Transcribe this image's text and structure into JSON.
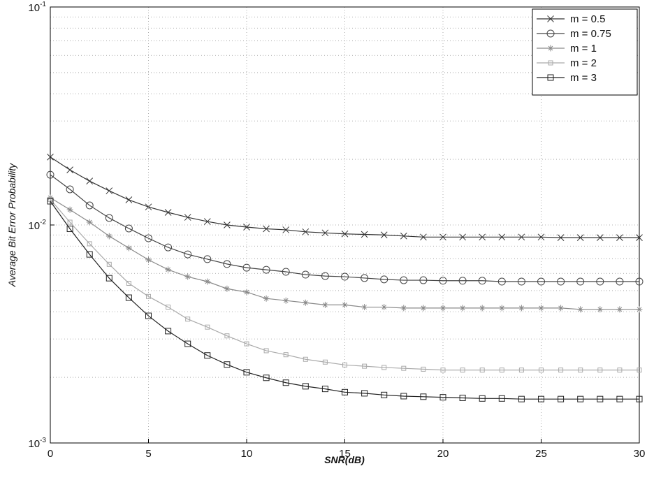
{
  "chart_data": {
    "type": "line",
    "x_label": "SNR(dB)",
    "y_label": "Average Bit Error Probability",
    "x": [
      0,
      1,
      2,
      3,
      4,
      5,
      6,
      7,
      8,
      9,
      10,
      11,
      12,
      13,
      14,
      15,
      16,
      17,
      18,
      19,
      20,
      21,
      22,
      23,
      24,
      25,
      26,
      27,
      28,
      29,
      30
    ],
    "xlim": [
      0,
      30
    ],
    "xticks": [
      0,
      5,
      10,
      15,
      20,
      25,
      30
    ],
    "ylim": [
      0.001,
      0.1
    ],
    "log_y": true,
    "grid": true,
    "minor_grid": true,
    "legend_position": "upper right",
    "yticks": [
      {
        "value": 0.001,
        "label": "10",
        "exponent": "-3"
      },
      {
        "value": 0.01,
        "label": "10",
        "exponent": "-2"
      },
      {
        "value": 0.1,
        "label": "10",
        "exponent": "-1"
      }
    ],
    "series": [
      {
        "name": "m = 0.5",
        "color": "#333333",
        "marker": "x",
        "values": [
          0.0205,
          0.0179,
          0.0159,
          0.01435,
          0.01304,
          0.0121,
          0.01142,
          0.01084,
          0.01037,
          0.01,
          0.00978,
          0.0096,
          0.0095,
          0.0093,
          0.0092,
          0.0091,
          0.00905,
          0.009,
          0.0089,
          0.0088,
          0.0088,
          0.0088,
          0.0088,
          0.0088,
          0.0088,
          0.0088,
          0.00875,
          0.00875,
          0.00875,
          0.00875,
          0.00875
        ]
      },
      {
        "name": "m = 0.75",
        "color": "#444444",
        "marker": "o",
        "values": [
          0.017,
          0.01457,
          0.0123,
          0.01077,
          0.00964,
          0.00869,
          0.00789,
          0.00733,
          0.00697,
          0.00662,
          0.00637,
          0.00623,
          0.0061,
          0.00592,
          0.00583,
          0.00579,
          0.00571,
          0.00563,
          0.00558,
          0.00558,
          0.00555,
          0.00555,
          0.00555,
          0.0055,
          0.0055,
          0.0055,
          0.0055,
          0.0055,
          0.0055,
          0.0055,
          0.0055
        ]
      },
      {
        "name": "m = 1",
        "color": "#8a8a8a",
        "marker": "*",
        "values": [
          0.01334,
          0.01175,
          0.0103,
          0.00889,
          0.00784,
          0.00692,
          0.00624,
          0.00579,
          0.0055,
          0.0051,
          0.00492,
          0.0046,
          0.0045,
          0.0044,
          0.0043,
          0.0043,
          0.0042,
          0.0042,
          0.00416,
          0.00416,
          0.00416,
          0.00416,
          0.00416,
          0.00416,
          0.00416,
          0.00416,
          0.00416,
          0.0041,
          0.0041,
          0.0041,
          0.0041
        ]
      },
      {
        "name": "m = 2",
        "color": "#aaaaaa",
        "marker": "d",
        "values": [
          0.0131,
          0.0103,
          0.0082,
          0.0066,
          0.0054,
          0.0047,
          0.0042,
          0.0037,
          0.0034,
          0.0031,
          0.00285,
          0.00265,
          0.00254,
          0.00242,
          0.00235,
          0.00228,
          0.00225,
          0.00222,
          0.0022,
          0.00218,
          0.00216,
          0.00216,
          0.00216,
          0.00216,
          0.00216,
          0.00216,
          0.00216,
          0.00216,
          0.00216,
          0.00216,
          0.00216
        ]
      },
      {
        "name": "m = 3",
        "color": "#222222",
        "marker": "s",
        "values": [
          0.01285,
          0.0096,
          0.00733,
          0.0057,
          0.00464,
          0.00383,
          0.00326,
          0.00285,
          0.00252,
          0.00229,
          0.00211,
          0.00199,
          0.00189,
          0.00182,
          0.00177,
          0.00171,
          0.00169,
          0.00166,
          0.00164,
          0.00163,
          0.00162,
          0.00161,
          0.0016,
          0.0016,
          0.00159,
          0.00159,
          0.00159,
          0.00159,
          0.00159,
          0.00159,
          0.00159
        ]
      }
    ]
  }
}
